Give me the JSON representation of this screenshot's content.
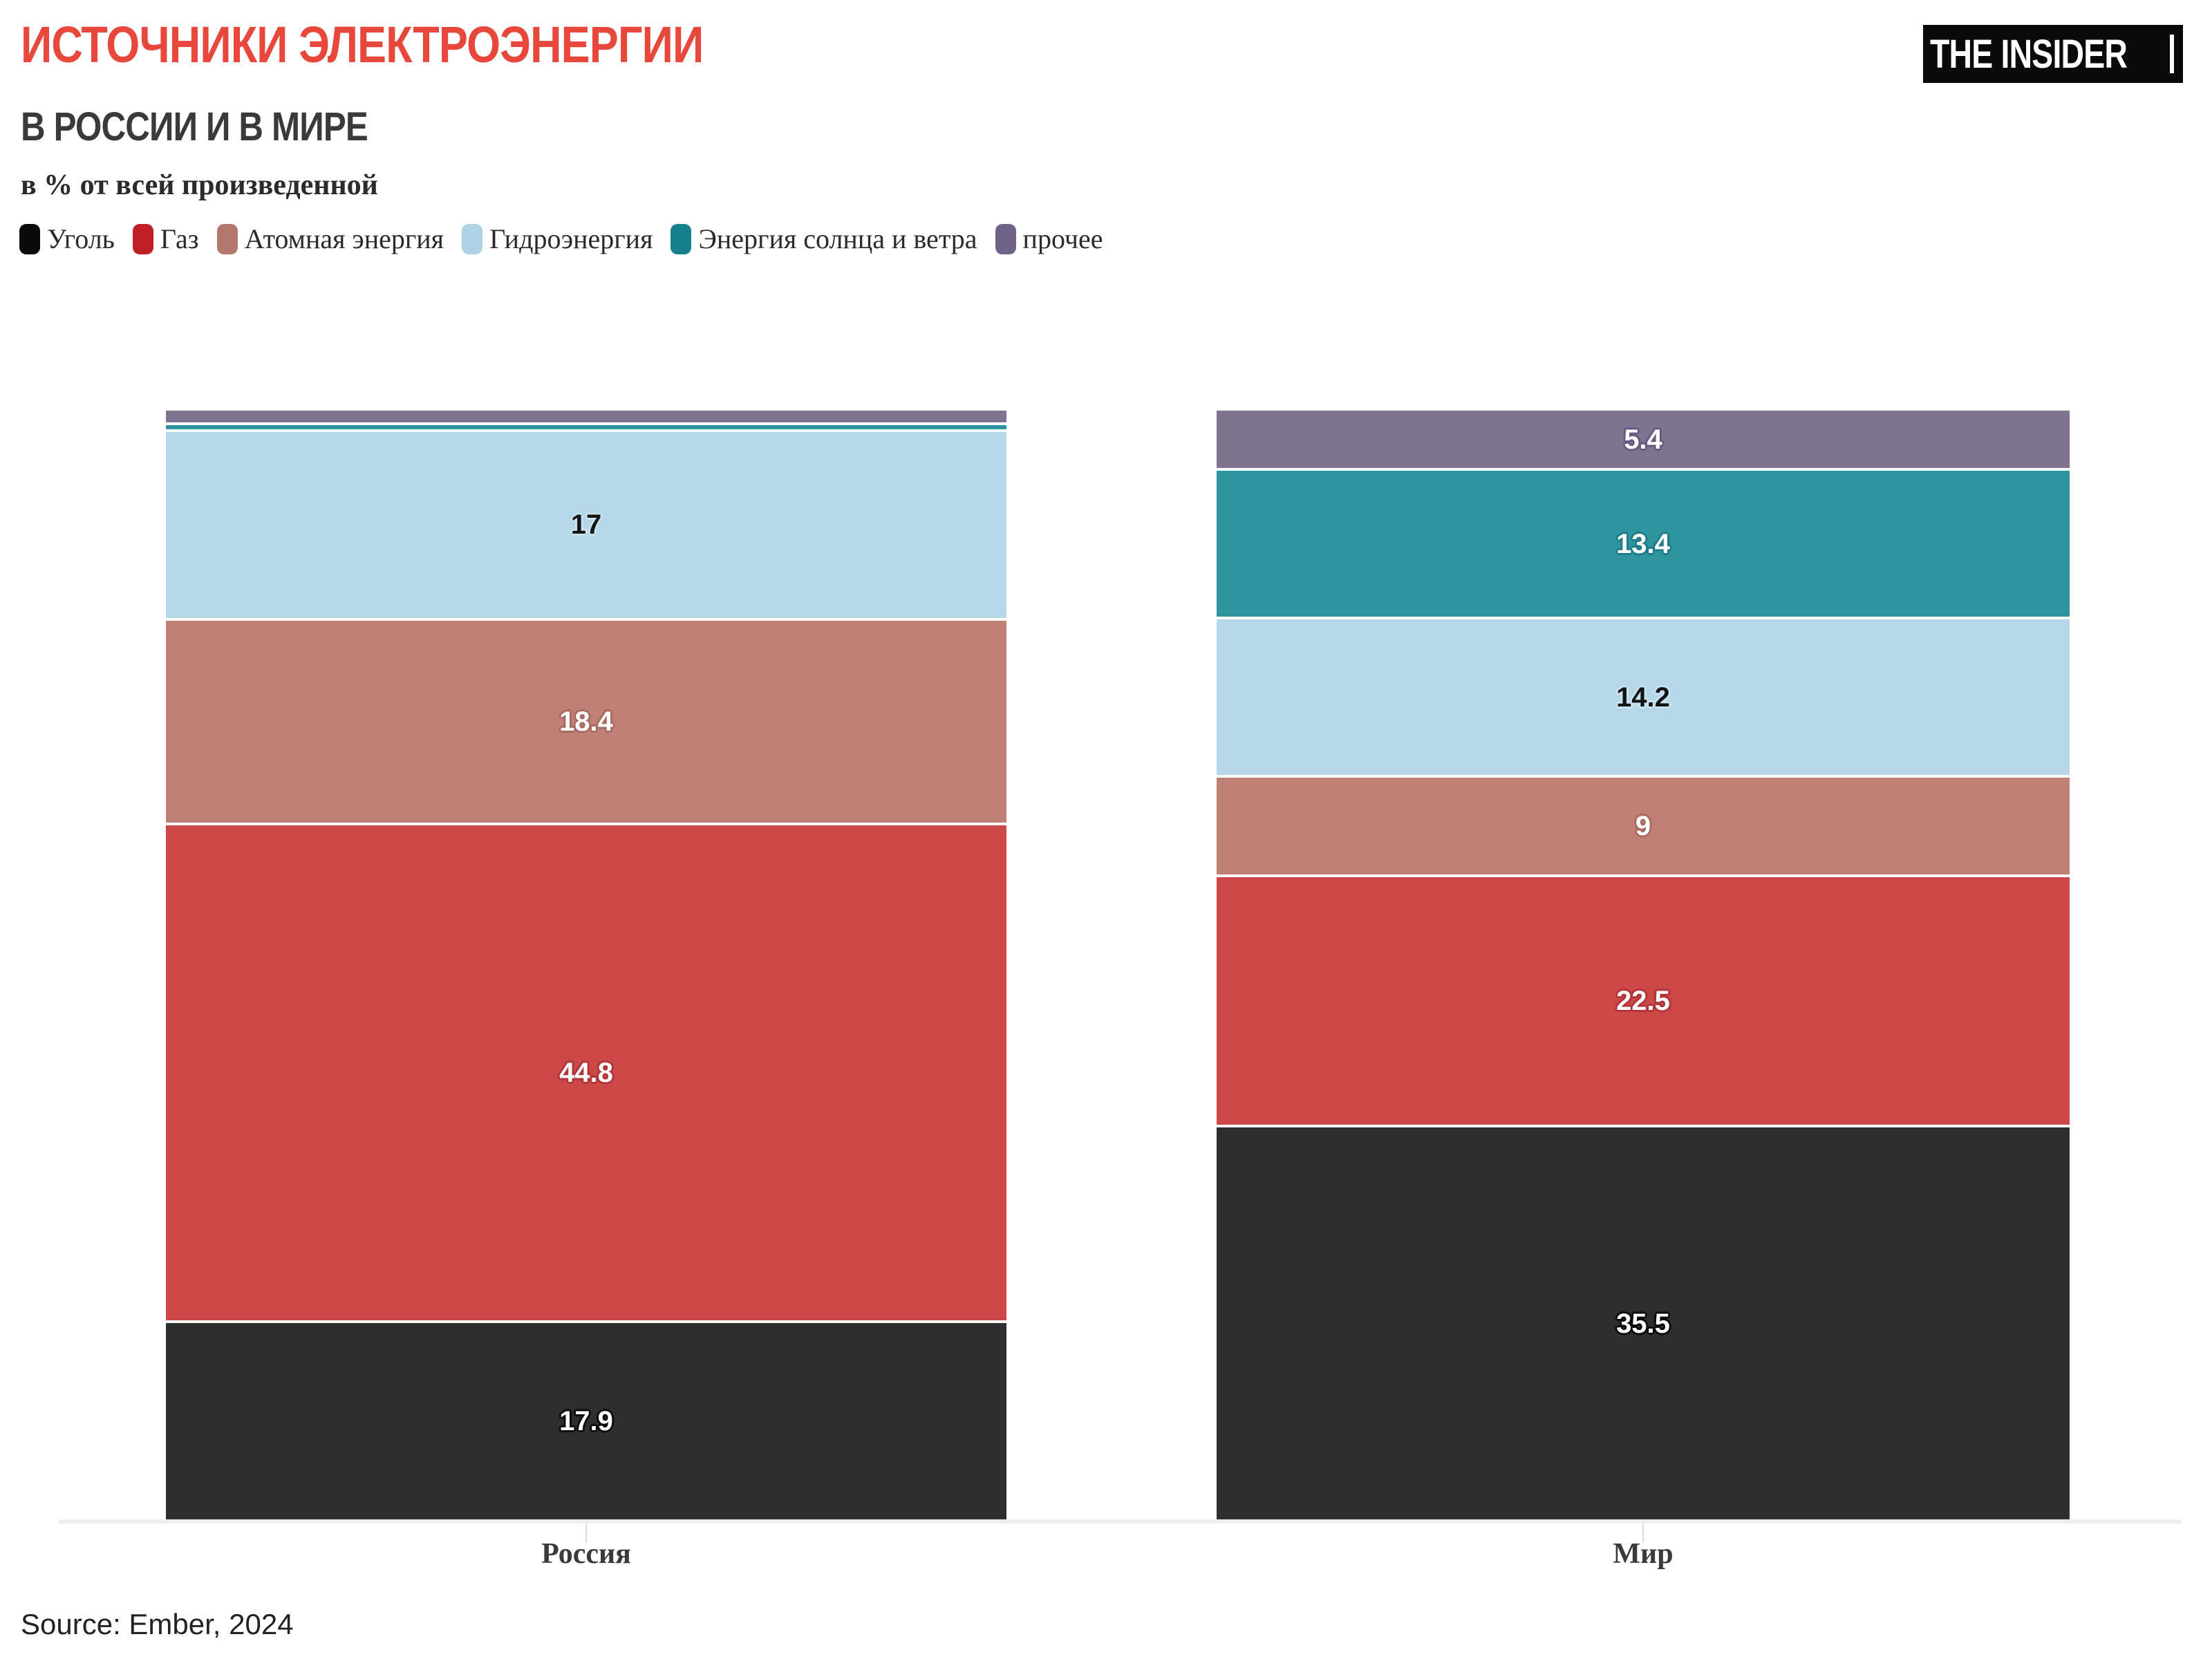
{
  "header": {
    "title": "ИСТОЧНИКИ ЭЛЕКТРОЭНЕРГИИ",
    "subtitle": "В РОССИИ И В МИРЕ",
    "note": "в % от всей произведенной"
  },
  "logo": {
    "text": "THE INSIDER"
  },
  "source": {
    "text": "Source: Ember, 2024"
  },
  "colors": {
    "title": "#e8473b",
    "subtitle": "#3a3a3a",
    "axis_line": "#ededed",
    "body_text": "#2b2b2b",
    "background": "#ffffff"
  },
  "chart_data": {
    "type": "bar",
    "variant": "stacked-percent",
    "title": "Источники электроэнергии в России и в мире",
    "subtitle": "в % от всей произведенной",
    "categories": [
      "Россия",
      "Мир"
    ],
    "category_keys": [
      "russia",
      "world"
    ],
    "ylim": [
      0,
      100
    ],
    "grid": false,
    "legend_position": "top",
    "series": [
      {
        "key": "coal",
        "name": "Уголь",
        "color": "#2e2e2e",
        "legend_color": "#0a0a0a",
        "label_color": "#ffffff",
        "halo_color": "#0a0a0a",
        "values": [
          17.9,
          35.5
        ],
        "labels": [
          "17.9",
          "35.5"
        ]
      },
      {
        "key": "gas",
        "name": "Газ",
        "color": "#cb4748",
        "legend_color": "#bf2026",
        "label_color": "#ffffff",
        "halo_color": "#b23438",
        "values": [
          44.8,
          22.5
        ],
        "labels": [
          "44.8",
          "22.5"
        ]
      },
      {
        "key": "nuclear",
        "name": "Атомная энергия",
        "color": "#bf8076",
        "legend_color": "#b3776d",
        "label_color": "#ffffff",
        "halo_color": "#aa6a60",
        "values": [
          18.4,
          9
        ],
        "labels": [
          "18.4",
          "9"
        ]
      },
      {
        "key": "hydro",
        "name": "Гидроэнергия",
        "color": "#b5d7e8",
        "legend_color": "#aed2e6",
        "label_color": "#141414",
        "halo_color": "#c8e2f0",
        "values": [
          17,
          14.2
        ],
        "labels": [
          "17",
          "14.2"
        ]
      },
      {
        "key": "solar-wind",
        "name": "Энергия солнца и ветра",
        "color": "#2e95a0",
        "legend_color": "#157f8d",
        "label_color": "#ffffff",
        "halo_color": "#1d7c87",
        "values": [
          0.6,
          13.4
        ],
        "labels": [
          "",
          "13.4"
        ]
      },
      {
        "key": "other",
        "name": "прочее",
        "color": "#80738f",
        "legend_color": "#6f6288",
        "label_color": "#ffffff",
        "halo_color": "#675a7e",
        "values": [
          1.3,
          5.4
        ],
        "labels": [
          "",
          "5.4"
        ]
      }
    ]
  }
}
